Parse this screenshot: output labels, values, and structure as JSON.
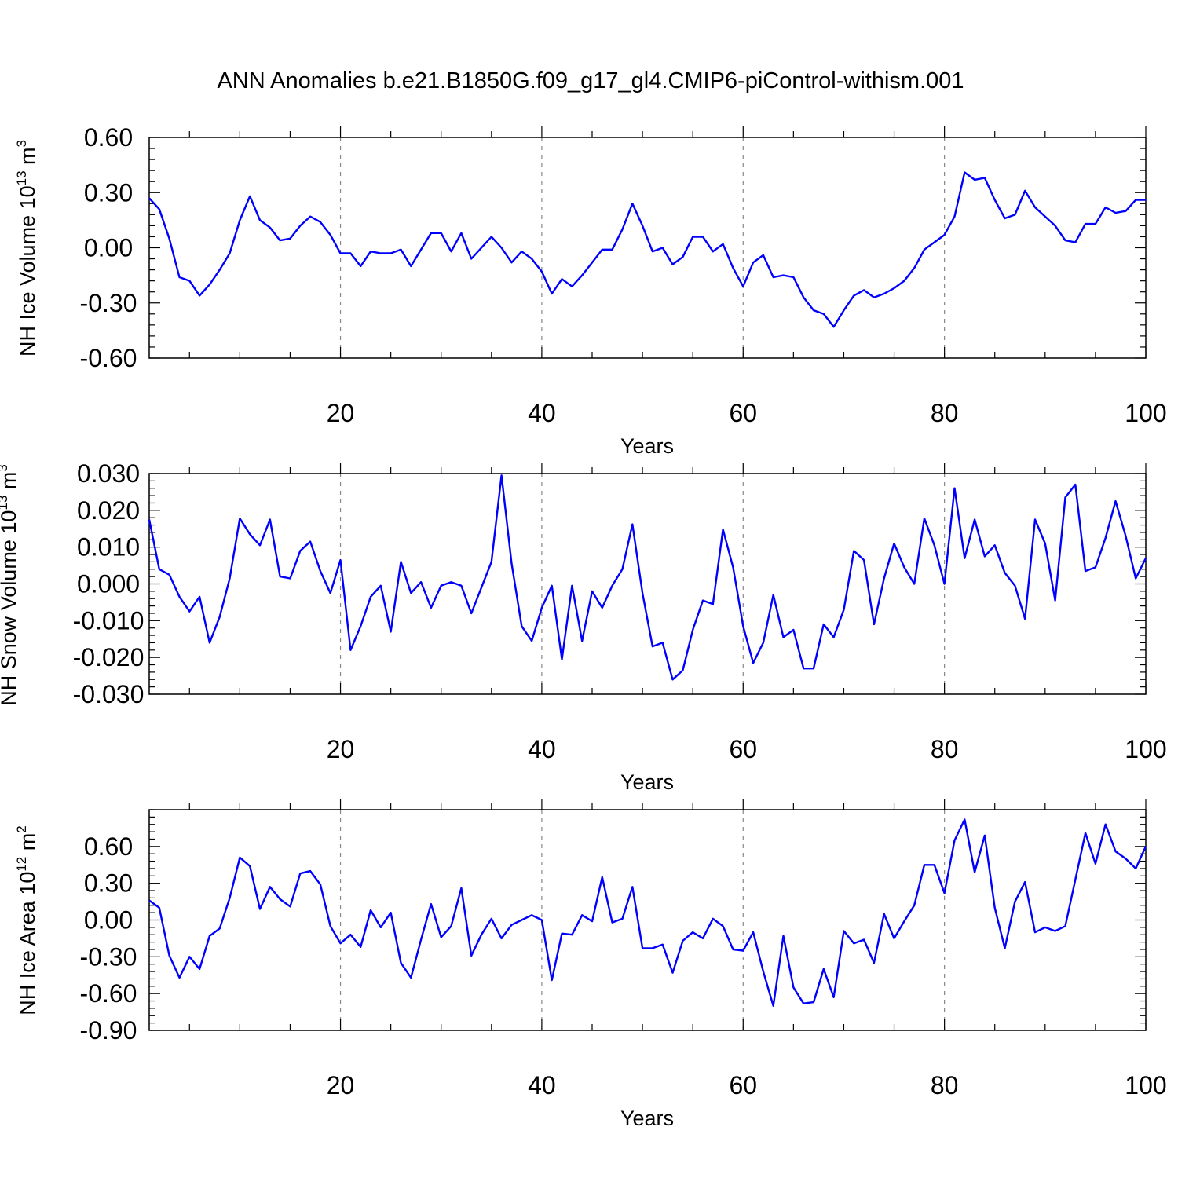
{
  "title": "ANN Anomalies b.e21.B1850G.f09_g17_gl4.CMIP6-piControl-withism.001",
  "colors": {
    "series": "#0000ff",
    "refline": "#888888"
  },
  "chart_data": [
    {
      "type": "line",
      "xlabel": "Years",
      "ylabel": "NH Ice Volume 10",
      "ylabel_exp": "13",
      "ylabel_unit": " m",
      "ylabel_unit_exp": "3",
      "xlim": [
        1,
        100
      ],
      "ylim": [
        -0.6,
        0.6
      ],
      "yticks": [
        -0.6,
        -0.3,
        0.0,
        0.3,
        0.6
      ],
      "ytick_labels": [
        "-0.60",
        "-0.30",
        "0.00",
        "0.30",
        "0.60"
      ],
      "xticks": [
        20,
        40,
        60,
        80,
        100
      ],
      "xtick_labels": [
        "20",
        "40",
        "60",
        "80",
        "100"
      ],
      "reference_lines_x": [
        20,
        40,
        60,
        80
      ],
      "grid": false,
      "x_start": 1,
      "values": [
        0.27,
        0.21,
        0.05,
        -0.16,
        -0.18,
        -0.26,
        -0.2,
        -0.12,
        -0.03,
        0.15,
        0.28,
        0.15,
        0.11,
        0.04,
        0.05,
        0.12,
        0.17,
        0.14,
        0.07,
        -0.03,
        -0.03,
        -0.1,
        -0.02,
        -0.03,
        -0.03,
        -0.01,
        -0.1,
        -0.01,
        0.08,
        0.08,
        -0.02,
        0.08,
        -0.06,
        0.0,
        0.06,
        0.0,
        -0.08,
        -0.02,
        -0.06,
        -0.13,
        -0.25,
        -0.17,
        -0.21,
        -0.15,
        -0.08,
        -0.01,
        -0.01,
        0.1,
        0.24,
        0.12,
        -0.02,
        0.0,
        -0.09,
        -0.05,
        0.06,
        0.06,
        -0.02,
        0.02,
        -0.11,
        -0.21,
        -0.08,
        -0.04,
        -0.16,
        -0.15,
        -0.16,
        -0.27,
        -0.34,
        -0.36,
        -0.43,
        -0.34,
        -0.26,
        -0.23,
        -0.27,
        -0.25,
        -0.22,
        -0.18,
        -0.11,
        -0.01,
        0.03,
        0.07,
        0.17,
        0.41,
        0.37,
        0.38,
        0.26,
        0.16,
        0.18,
        0.31,
        0.22,
        0.17,
        0.12,
        0.04,
        0.03,
        0.13,
        0.13,
        0.22,
        0.19,
        0.2,
        0.26,
        0.26
      ]
    },
    {
      "type": "line",
      "xlabel": "Years",
      "ylabel": "NH Snow Volume 10",
      "ylabel_exp": "13",
      "ylabel_unit": " m",
      "ylabel_unit_exp": "3",
      "xlim": [
        1,
        100
      ],
      "ylim": [
        -0.03,
        0.03
      ],
      "yticks": [
        -0.03,
        -0.02,
        -0.01,
        0.0,
        0.01,
        0.02,
        0.03
      ],
      "ytick_labels": [
        "-0.030",
        "-0.020",
        "-0.010",
        "0.000",
        "0.010",
        "0.020",
        "0.030"
      ],
      "xticks": [
        20,
        40,
        60,
        80,
        100
      ],
      "xtick_labels": [
        "20",
        "40",
        "60",
        "80",
        "100"
      ],
      "reference_lines_x": [
        20,
        40,
        60,
        80
      ],
      "grid": false,
      "x_start": 1,
      "values": [
        0.0175,
        0.004,
        0.0025,
        -0.0035,
        -0.0075,
        -0.0035,
        -0.016,
        -0.009,
        0.0015,
        0.0178,
        0.0135,
        0.0105,
        0.0175,
        0.002,
        0.0015,
        0.009,
        0.0115,
        0.0035,
        -0.0025,
        0.0065,
        -0.018,
        -0.0115,
        -0.0035,
        -0.0005,
        -0.013,
        0.006,
        -0.0025,
        0.0005,
        -0.0065,
        -0.0005,
        0.0005,
        -0.0005,
        -0.008,
        -0.001,
        0.006,
        0.0295,
        0.0055,
        -0.0115,
        -0.0155,
        -0.0065,
        -0.0005,
        -0.0205,
        -0.0005,
        -0.0155,
        -0.002,
        -0.0065,
        -0.0005,
        0.004,
        0.0162,
        -0.0025,
        -0.017,
        -0.016,
        -0.026,
        -0.0235,
        -0.0125,
        -0.0045,
        -0.0055,
        0.0148,
        0.0045,
        -0.0115,
        -0.0215,
        -0.016,
        -0.003,
        -0.0145,
        -0.0125,
        -0.023,
        -0.023,
        -0.011,
        -0.0145,
        -0.007,
        0.009,
        0.0065,
        -0.011,
        0.0015,
        0.011,
        0.0045,
        0.0,
        0.0178,
        0.0105,
        0.0,
        0.026,
        0.007,
        0.0175,
        0.0075,
        0.0105,
        0.003,
        -0.0005,
        -0.0095,
        0.0175,
        0.011,
        -0.0045,
        0.0235,
        0.027,
        0.0035,
        0.0045,
        0.0125,
        0.0225,
        0.013,
        0.0015,
        0.007
      ]
    },
    {
      "type": "line",
      "xlabel": "Years",
      "ylabel": "NH Ice Area 10",
      "ylabel_exp": "12",
      "ylabel_unit": " m",
      "ylabel_unit_exp": "2",
      "xlim": [
        1,
        100
      ],
      "ylim": [
        -0.9,
        0.9
      ],
      "yticks": [
        -0.9,
        -0.6,
        -0.3,
        0.0,
        0.3,
        0.6
      ],
      "ytick_labels": [
        "-0.90",
        "-0.60",
        "-0.30",
        "0.00",
        "0.30",
        "0.60"
      ],
      "xticks": [
        20,
        40,
        60,
        80,
        100
      ],
      "xtick_labels": [
        "20",
        "40",
        "60",
        "80",
        "100"
      ],
      "reference_lines_x": [
        20,
        40,
        60,
        80
      ],
      "grid": false,
      "x_start": 1,
      "values": [
        0.16,
        0.1,
        -0.29,
        -0.47,
        -0.3,
        -0.4,
        -0.13,
        -0.07,
        0.18,
        0.51,
        0.44,
        0.09,
        0.27,
        0.17,
        0.11,
        0.38,
        0.4,
        0.29,
        -0.05,
        -0.19,
        -0.12,
        -0.22,
        0.08,
        -0.06,
        0.06,
        -0.35,
        -0.47,
        -0.16,
        0.13,
        -0.14,
        -0.05,
        0.26,
        -0.29,
        -0.12,
        0.01,
        -0.15,
        -0.04,
        0.0,
        0.04,
        0.0,
        -0.49,
        -0.11,
        -0.12,
        0.04,
        -0.01,
        0.35,
        -0.02,
        0.01,
        0.27,
        -0.23,
        -0.23,
        -0.2,
        -0.43,
        -0.17,
        -0.1,
        -0.15,
        0.01,
        -0.05,
        -0.24,
        -0.25,
        -0.1,
        -0.42,
        -0.7,
        -0.13,
        -0.55,
        -0.68,
        -0.67,
        -0.4,
        -0.63,
        -0.09,
        -0.19,
        -0.16,
        -0.35,
        0.05,
        -0.15,
        -0.01,
        0.12,
        0.45,
        0.45,
        0.22,
        0.65,
        0.82,
        0.39,
        0.69,
        0.1,
        -0.23,
        0.15,
        0.31,
        -0.1,
        -0.06,
        -0.09,
        -0.05,
        0.33,
        0.71,
        0.46,
        0.78,
        0.56,
        0.5,
        0.42,
        0.6
      ]
    }
  ]
}
